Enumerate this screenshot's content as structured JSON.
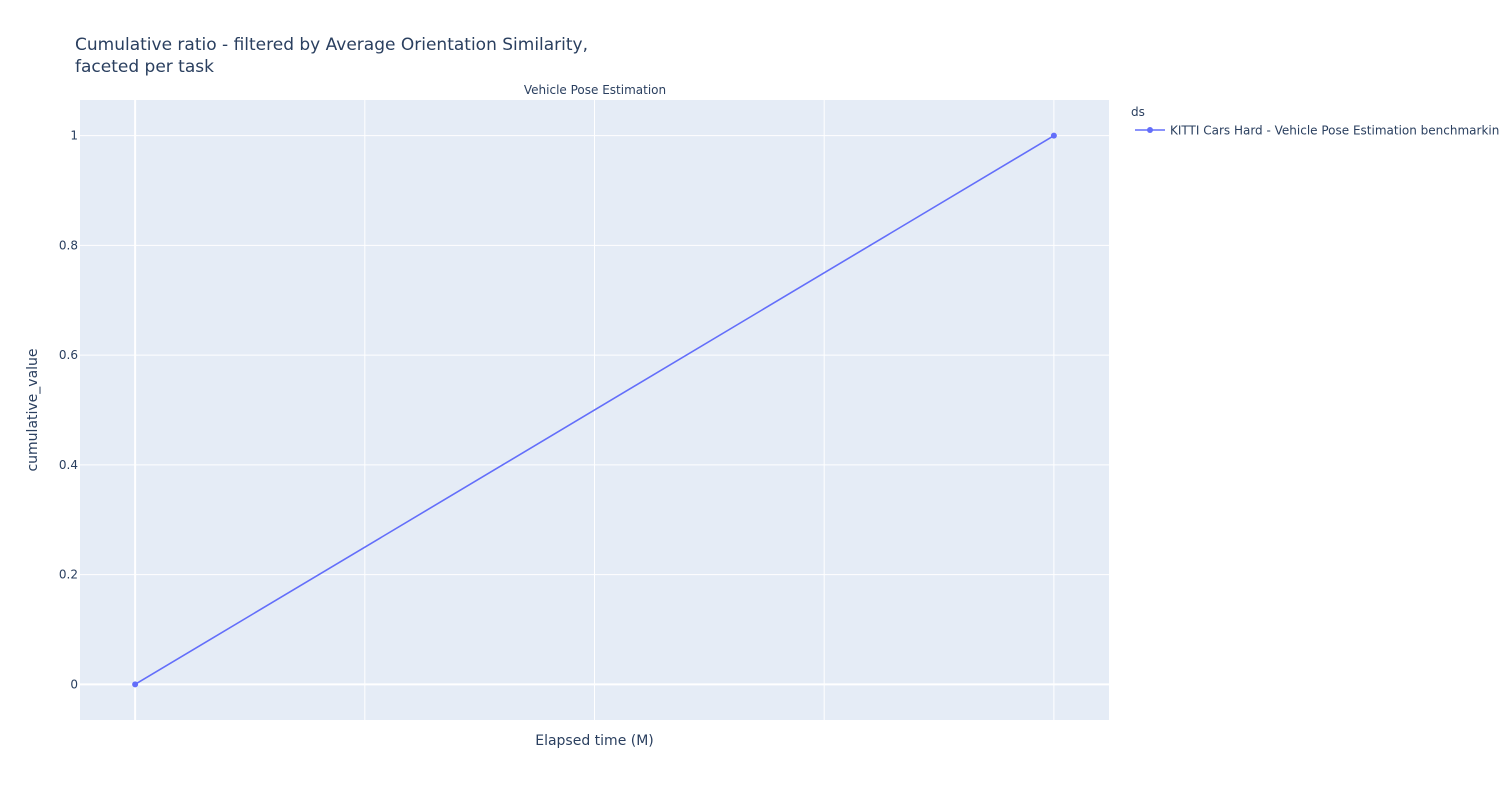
{
  "chart_data": {
    "type": "line",
    "title_lines": [
      "Cumulative ratio - filtered by Average Orientation Similarity,",
      "faceted per task"
    ],
    "facet_title": "Vehicle Pose Estimation",
    "xlabel": "Elapsed time (M)",
    "ylabel": "cumulative_value",
    "ylim": [
      -0.065,
      1.065
    ],
    "yticks": [
      0,
      0.2,
      0.4,
      0.6,
      0.8,
      1
    ],
    "ytick_labels": [
      "0",
      "0.2",
      "0.4",
      "0.6",
      "0.8",
      "1"
    ],
    "xlim": [
      -0.06,
      1.06
    ],
    "x_gridlines": [
      0,
      0.25,
      0.5,
      0.75,
      1
    ],
    "legend": {
      "title": "ds",
      "placement": "top-right outside"
    },
    "grid": true,
    "colors": {
      "plot_bg": "#e5ecf6",
      "grid": "#ffffff",
      "series": "#636efa",
      "text": "#2a3f5f"
    },
    "series": [
      {
        "name": "KITTI Cars Hard - Vehicle Pose Estimation benchmarking",
        "x": [
          0,
          1
        ],
        "y": [
          0,
          1
        ]
      }
    ]
  }
}
